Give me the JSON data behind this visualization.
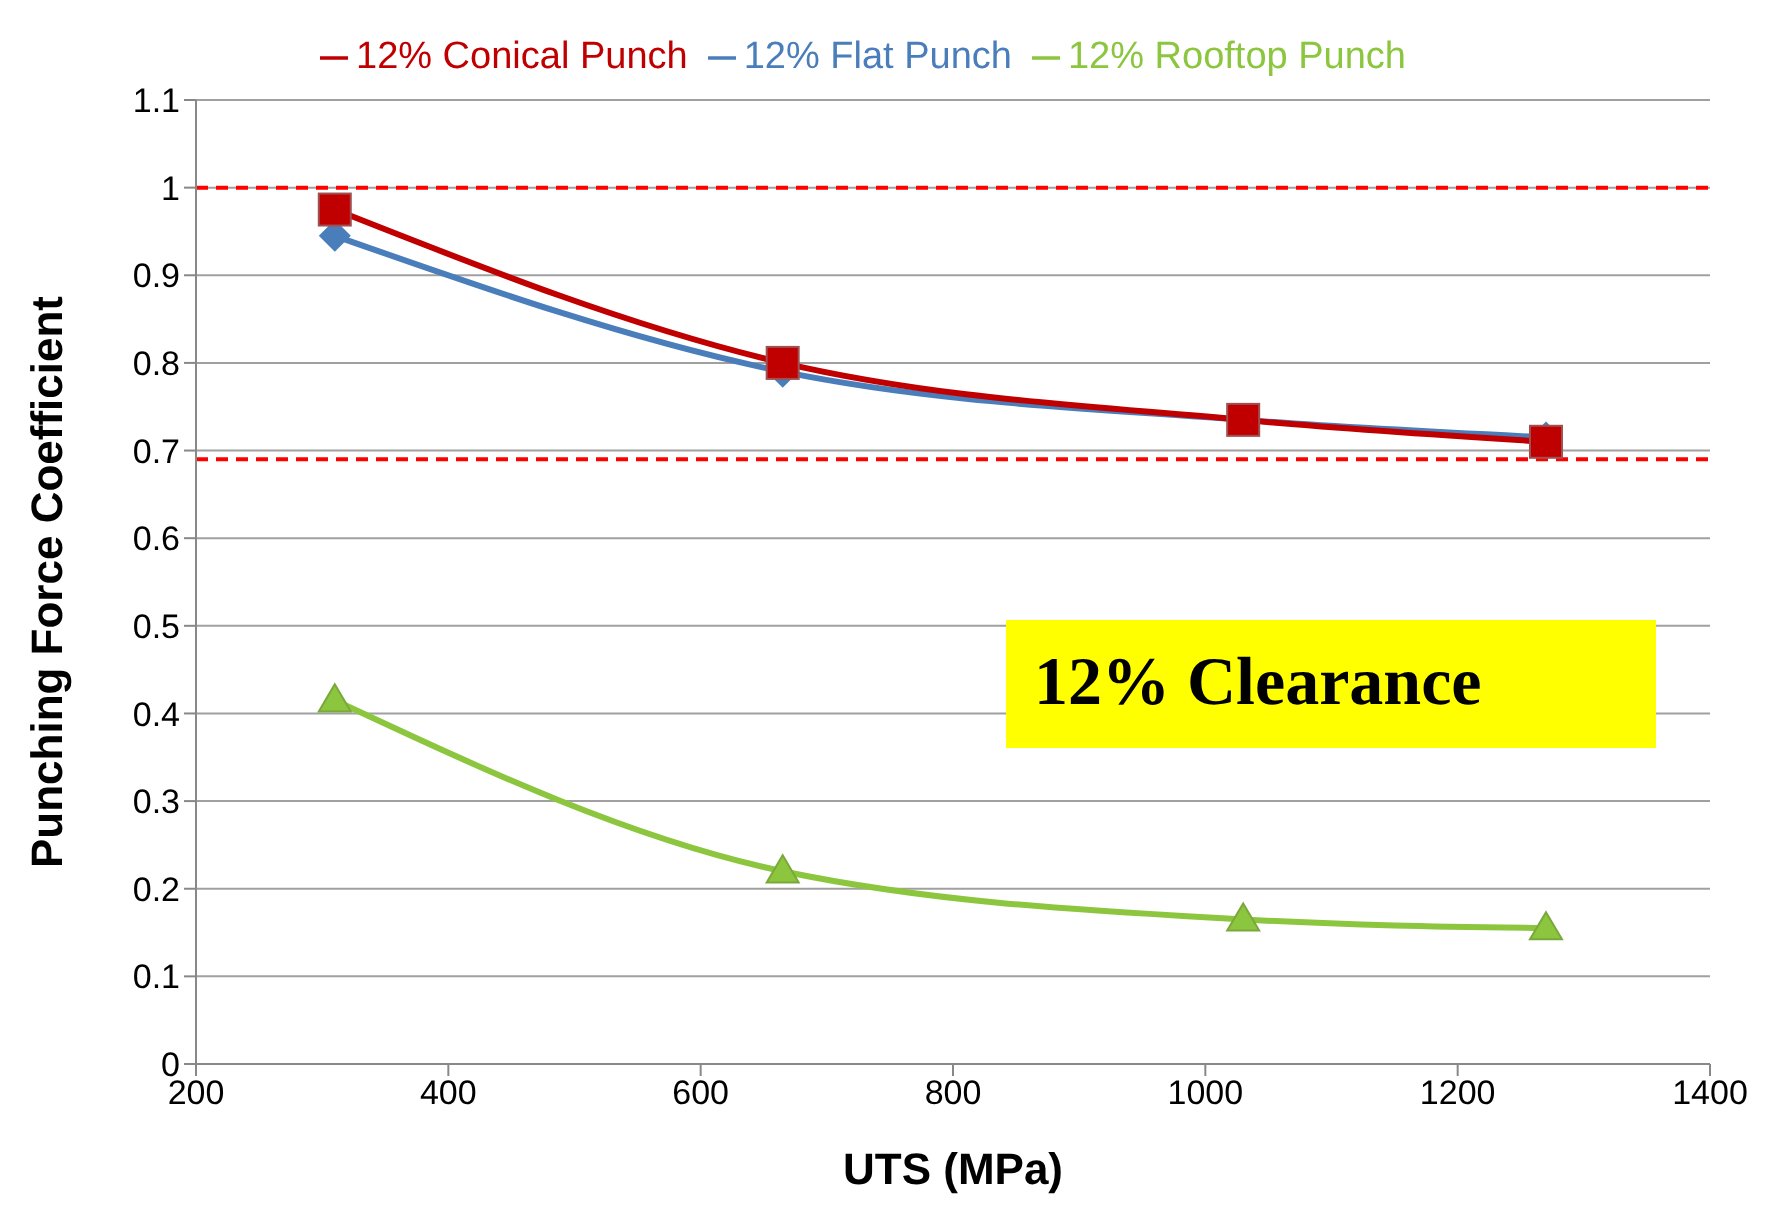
{
  "chart_data": {
    "type": "line",
    "xlabel": "UTS (MPa)",
    "ylabel": "Punching Force Coefficient",
    "x": [
      310,
      665,
      1030,
      1270
    ],
    "series": [
      {
        "name": "12% Flat Punch",
        "color": "#4a7ebb",
        "marker": "diamond",
        "values": [
          0.945,
          0.79,
          0.735,
          0.715
        ]
      },
      {
        "name": "12% Conical Punch",
        "color": "#c00000",
        "marker": "square",
        "values": [
          0.975,
          0.8,
          0.735,
          0.71
        ]
      },
      {
        "name": "12% Rooftop Punch",
        "color": "#8cc63f",
        "marker": "triangle",
        "values": [
          0.415,
          0.22,
          0.165,
          0.155
        ]
      }
    ],
    "xlim": [
      200,
      1400
    ],
    "xticks": [
      200,
      400,
      600,
      800,
      1000,
      1200,
      1400
    ],
    "ylim": [
      0,
      1.1
    ],
    "yticks": [
      0,
      0.1,
      0.2,
      0.3,
      0.4,
      0.5,
      0.6,
      0.7,
      0.8,
      0.9,
      1,
      1.1
    ],
    "ref_lines": [
      {
        "axis": "y",
        "value": 1,
        "color": "#ff0000",
        "line_style": "dashed"
      },
      {
        "axis": "y",
        "value": 0.69,
        "color": "#ff0000",
        "line_style": "dashed"
      }
    ],
    "annotations": [
      "12% Clearance"
    ],
    "grid": "y",
    "legend": "top"
  }
}
